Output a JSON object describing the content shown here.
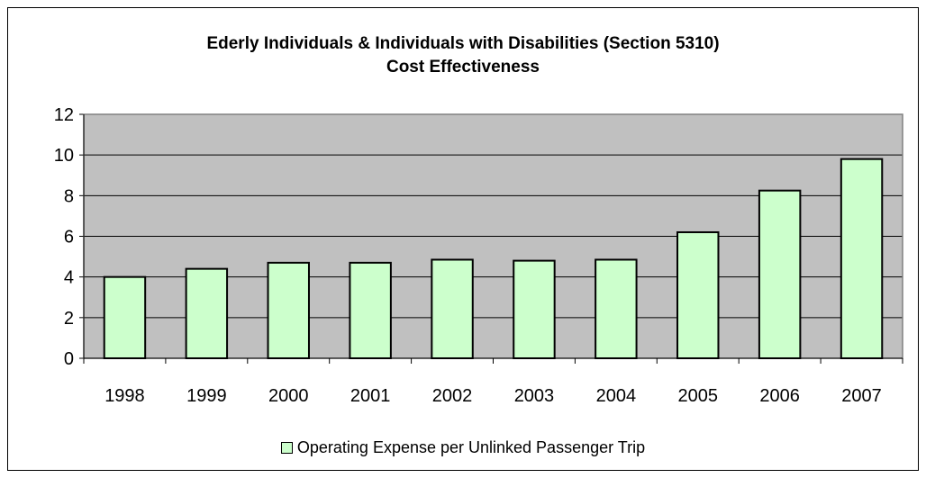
{
  "chart_data": {
    "type": "bar",
    "title": "Ederly Individuals & Individuals with Disabilities (Section 5310)",
    "subtitle": "Cost Effectiveness",
    "categories": [
      "1998",
      "1999",
      "2000",
      "2001",
      "2002",
      "2003",
      "2004",
      "2005",
      "2006",
      "2007"
    ],
    "series": [
      {
        "name": "Operating Expense per Unlinked Passenger Trip",
        "values": [
          4.0,
          4.4,
          4.7,
          4.7,
          4.85,
          4.8,
          4.85,
          6.2,
          8.25,
          9.8
        ]
      }
    ],
    "ylim": [
      0,
      12
    ],
    "yticks": [
      0,
      2,
      4,
      6,
      8,
      10,
      12
    ],
    "grid": true,
    "legend": "bottom",
    "colors": {
      "plot_bg": "#c0c0c0",
      "bar_fill": "#ccffcc",
      "bar_stroke": "#000000",
      "grid": "#000000"
    }
  }
}
